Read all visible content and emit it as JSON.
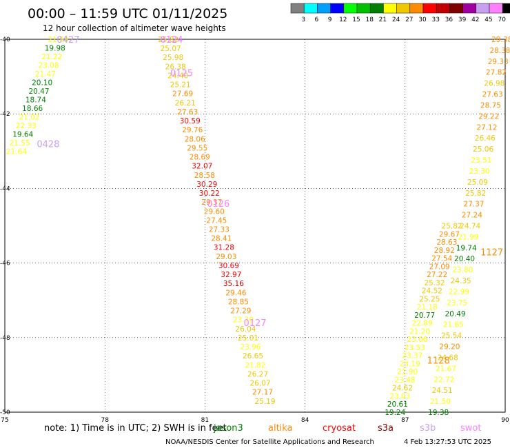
{
  "title": "00:00 – 11:59 UTC 01/11/2025",
  "subtitle": "12 hour collection of altimeter wave heights",
  "colorbar": {
    "labels": [
      "3",
      "6",
      "9",
      "12",
      "15",
      "18",
      "21",
      "24",
      "27",
      "30",
      "33",
      "36",
      "39",
      "42",
      "45",
      "70",
      "(ft)"
    ],
    "colors": [
      "#808080",
      "#00ffff",
      "#00a0ff",
      "#0000ff",
      "#00ff00",
      "#00c000",
      "#008000",
      "#ffff00",
      "#f0c800",
      "#ff8c00",
      "#ff0000",
      "#c00000",
      "#800000",
      "#a000a0",
      "#c8a0f0",
      "#ff80ff",
      "#000000"
    ]
  },
  "note": "note:  1) Time is in UTC; 2) SWH is in feet",
  "satellites": [
    {
      "name": "jason3",
      "color": "#008000"
    },
    {
      "name": "altika",
      "color": "#ff8c00"
    },
    {
      "name": "cryosat",
      "color": "#ff0000"
    },
    {
      "name": "s3a",
      "color": "#800000"
    },
    {
      "name": "s3b",
      "color": "#c8a0f0"
    },
    {
      "name": "swot",
      "color": "#ff80ff"
    }
  ],
  "credit": "NOAA/NESDIS Center for Satellite Applications and Research",
  "timestamp": "4 Feb 13:27:53 UTC 2025",
  "chart_data": {
    "type": "scatter",
    "x_ticks": [
      "75",
      "78",
      "81",
      "84",
      "87",
      "90"
    ],
    "y_ticks": [
      "-40",
      "-42",
      "-44",
      "-46",
      "-48",
      "-50"
    ],
    "xlim": [
      75,
      90
    ],
    "ylim": [
      -50,
      -40
    ],
    "grid": true,
    "passes": [
      {
        "label": "0427",
        "color": "#c8a0f0",
        "lon": 76.9,
        "lat": -40.0
      },
      {
        "label": "0428",
        "color": "#c8a0f0",
        "lon": 76.3,
        "lat": -42.8
      },
      {
        "label": "0124",
        "color": "#ff80ff",
        "lon": 80.0,
        "lat": -40.0
      },
      {
        "label": "0125",
        "color": "#ff80ff",
        "lon": 80.3,
        "lat": -40.9
      },
      {
        "label": "0126",
        "color": "#ff80ff",
        "lon": 81.4,
        "lat": -44.4
      },
      {
        "label": "0127",
        "color": "#ff80ff",
        "lon": 82.5,
        "lat": -47.6
      },
      {
        "label": "1127",
        "color": "#ff8c00",
        "lon": 89.6,
        "lat": -45.7
      },
      {
        "label": "1128",
        "color": "#ff8c00",
        "lon": 88.0,
        "lat": -48.6
      }
    ],
    "series": [
      {
        "name": "pass 0427/0428",
        "lon_start": 76.6,
        "lat_start": -40.0,
        "lon_end": 75.35,
        "lat_end": -43.0,
        "values": [
          21.88,
          19.98,
          21.22,
          23.08,
          21.47,
          20.1,
          20.47,
          18.74,
          18.66,
          21.02,
          22.33,
          19.64,
          21.55,
          21.64
        ]
      },
      {
        "name": "pass 0124–0127",
        "lon_start": 79.9,
        "lat_start": -40.0,
        "lon_end": 82.8,
        "lat_end": -49.7,
        "values": [
          25.82,
          25.07,
          25.98,
          26.38,
          24.4,
          25.21,
          27.69,
          26.21,
          27.63,
          30.59,
          29.76,
          28.06,
          29.55,
          28.69,
          32.07,
          28.58,
          30.29,
          30.22,
          29.37,
          29.6,
          27.45,
          27.33,
          28.41,
          31.28,
          29.03,
          30.69,
          32.97,
          35.16,
          29.46,
          28.85,
          27.29,
          23.7,
          26.04,
          25.01,
          23.96,
          26.65,
          21.82,
          26.27,
          26.07,
          27.17,
          25.19
        ]
      },
      {
        "name": "pass 1127/1128 (left)",
        "lon_start": 88.4,
        "lat_start": -45.0,
        "lon_end": 86.7,
        "lat_end": -50.0,
        "values": [
          25.82,
          29.67,
          28.63,
          28.92,
          27.54,
          27.09,
          27.22,
          25.32,
          24.52,
          25.25,
          21.18,
          20.77,
          22.89,
          21.2,
          23.06,
          23.53,
          23.37,
          23.19,
          21.9,
          23.48,
          24.62,
          23.03,
          20.61,
          19.24
        ]
      },
      {
        "name": "pass 1127/1128 (right)",
        "lon_start": 89.9,
        "lat_start": -40.0,
        "lon_end": 88.0,
        "lat_end": -50.0,
        "values": [
          29.38,
          28.38,
          29.33,
          27.82,
          26.98,
          27.63,
          28.75,
          29.22,
          27.12,
          26.46,
          25.06,
          23.51,
          23.3,
          25.09,
          25.82,
          27.37,
          27.24,
          24.74,
          21.99,
          19.74,
          20.4,
          23.8,
          24.35,
          22.99,
          23.75,
          20.49,
          21.65,
          25.54,
          29.2,
          24.68,
          21.67,
          22.72,
          24.51,
          21.5,
          19.38
        ]
      }
    ]
  }
}
